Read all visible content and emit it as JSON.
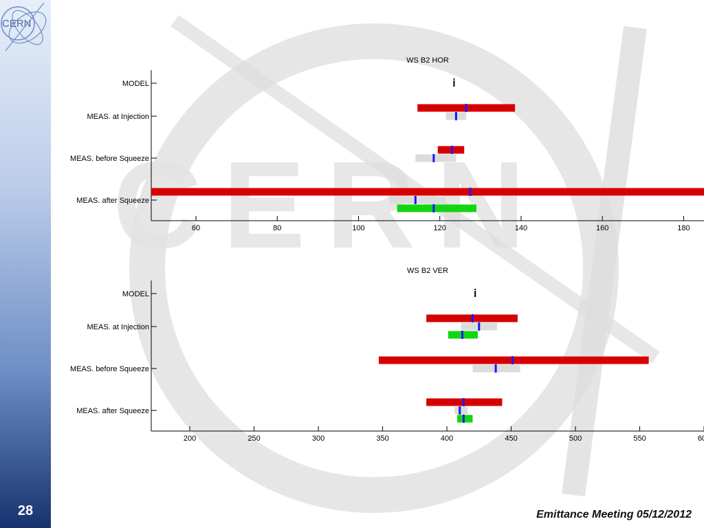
{
  "slide": {
    "page_number": "28",
    "footer": "Emittance Meeting 05/12/2012",
    "logo_text": "CERN",
    "watermark_text": "CERN"
  },
  "colors": {
    "red": "#d60000",
    "green": "#11d611",
    "gray": "#dcdcdc",
    "blue": "#1818ff",
    "axis": "#000000"
  },
  "chart_data": [
    {
      "type": "range",
      "title": "WS B2 HOR",
      "categories": [
        "MODEL",
        "MEAS. at Injection",
        "MEAS. before Squeeze",
        "MEAS. after Squeeze"
      ],
      "xlim": [
        49,
        185
      ],
      "xticks": [
        60,
        80,
        100,
        120,
        140,
        160,
        180
      ],
      "xtick_labels": [
        "60",
        "80",
        "100",
        "120",
        "140",
        "160",
        "180"
      ],
      "model_marker": 123.5,
      "bars": [
        {
          "category": 1,
          "offset": -1,
          "color": "red",
          "lo": 114.5,
          "hi": 138.5,
          "mark": 126.5
        },
        {
          "category": 1,
          "offset": 0,
          "color": "gray",
          "lo": 121.5,
          "hi": 126.5,
          "mark": 124.0
        },
        {
          "category": 2,
          "offset": -1,
          "color": "red",
          "lo": 119.5,
          "hi": 126.0,
          "mark": 123.0
        },
        {
          "category": 2,
          "offset": 0,
          "color": "gray",
          "lo": 114.0,
          "hi": 124.0,
          "mark": 118.5
        },
        {
          "category": 3,
          "offset": -1,
          "color": "red",
          "lo": 49,
          "hi": 185,
          "mark": 127.5
        },
        {
          "category": 3,
          "offset": 0,
          "color": "gray",
          "lo": 107.5,
          "hi": 121.5,
          "mark": 114.0
        },
        {
          "category": 3,
          "offset": 1,
          "color": "green",
          "lo": 109.5,
          "hi": 129.0,
          "mark": 118.5
        }
      ]
    },
    {
      "type": "range",
      "title": "WS B2 VER",
      "categories": [
        "MODEL",
        "MEAS. at Injection",
        "MEAS. before Squeeze",
        "MEAS. after Squeeze"
      ],
      "xlim": [
        170,
        600
      ],
      "xticks": [
        200,
        250,
        300,
        350,
        400,
        450,
        500,
        550,
        600
      ],
      "xtick_labels": [
        "200",
        "250",
        "300",
        "350",
        "400",
        "450",
        "500",
        "550",
        "600"
      ],
      "model_marker": 422,
      "bars": [
        {
          "category": 1,
          "offset": -1,
          "color": "red",
          "lo": 384,
          "hi": 455,
          "mark": 420
        },
        {
          "category": 1,
          "offset": 0,
          "color": "gray",
          "lo": 411,
          "hi": 439,
          "mark": 425
        },
        {
          "category": 1,
          "offset": 1,
          "color": "green",
          "lo": 401,
          "hi": 424,
          "mark": 412
        },
        {
          "category": 2,
          "offset": -1,
          "color": "red",
          "lo": 347,
          "hi": 557,
          "mark": 451
        },
        {
          "category": 2,
          "offset": 0,
          "color": "gray",
          "lo": 420,
          "hi": 457,
          "mark": 438
        },
        {
          "category": 3,
          "offset": -1,
          "color": "red",
          "lo": 384,
          "hi": 443,
          "mark": 413
        },
        {
          "category": 3,
          "offset": 0,
          "color": "gray",
          "lo": 406,
          "hi": 416,
          "mark": 410
        },
        {
          "category": 3,
          "offset": 1,
          "color": "green",
          "lo": 408,
          "hi": 420,
          "mark": 413
        }
      ]
    }
  ]
}
